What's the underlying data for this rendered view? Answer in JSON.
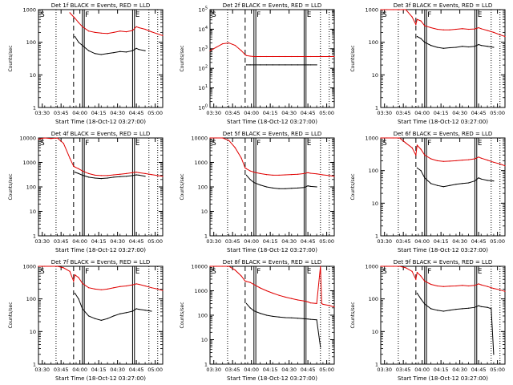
{
  "page": {
    "background": "#ffffff"
  },
  "colors": {
    "events": "#000000",
    "lld": "#e00000",
    "axis": "#000000"
  },
  "common": {
    "xlabel": "Start Time (18-Oct-12 03:27:00)",
    "ylabel": "Counts/sec",
    "x_ticks": [
      "03:30",
      "03:45",
      "04:00",
      "04:15",
      "04:30",
      "04:45",
      "05:00"
    ],
    "x_tick_minutes": [
      3,
      18,
      33,
      48,
      63,
      78,
      93
    ],
    "x_range_minutes": [
      0,
      99
    ],
    "y_ticks": [
      "1",
      "10",
      "100",
      "1000"
    ],
    "y_scale": "log",
    "legend_letters": [
      "S",
      "F",
      "E"
    ]
  },
  "markers": {
    "dotted_minutes": [
      14,
      88,
      95
    ],
    "dashed_minutes": [
      28
    ],
    "solid_minutes": [
      35,
      36.5,
      75,
      76.5
    ]
  },
  "chart_data": [
    {
      "type": "line",
      "title": "Det 1f BLACK = Events, RED = LLD",
      "ylim": [
        1,
        1000
      ],
      "ylabel": "Counts/sec",
      "xlabel": "Start Time (18-Oct-12 03:27:00)",
      "x": [
        0,
        5,
        10,
        15,
        20,
        25,
        28,
        29,
        32,
        35,
        40,
        45,
        50,
        55,
        60,
        65,
        70,
        75,
        78,
        80,
        85,
        90,
        95,
        99
      ],
      "series": [
        {
          "name": "LLD",
          "values": [
            null,
            null,
            null,
            null,
            null,
            800,
            600,
            550,
            400,
            300,
            220,
            200,
            190,
            185,
            200,
            220,
            210,
            230,
            300,
            280,
            250,
            210,
            180,
            160
          ]
        },
        {
          "name": "Events",
          "values": [
            null,
            null,
            null,
            null,
            null,
            null,
            null,
            150,
            100,
            80,
            55,
            45,
            42,
            45,
            48,
            52,
            50,
            55,
            65,
            60,
            55,
            null,
            null,
            null
          ]
        }
      ]
    },
    {
      "type": "line",
      "title": "Det 2f BLACK = Events, RED = LLD",
      "ylim": [
        1,
        100000
      ],
      "ylabel": "Counts/sec",
      "xlabel": "Start Time (18-Oct-12 03:27:00)",
      "x": [
        0,
        5,
        10,
        15,
        20,
        25,
        28,
        29,
        32,
        35,
        40,
        45,
        50,
        55,
        60,
        65,
        70,
        75,
        78,
        80,
        85,
        90,
        95,
        99
      ],
      "series": [
        {
          "name": "LLD",
          "values": [
            800,
            1200,
            1800,
            2000,
            1500,
            800,
            500,
            450,
            420,
            400,
            400,
            400,
            400,
            400,
            400,
            400,
            400,
            400,
            400,
            400,
            400,
            400,
            400,
            400
          ]
        },
        {
          "name": "Events",
          "values": [
            null,
            null,
            null,
            null,
            null,
            null,
            null,
            150,
            150,
            150,
            150,
            150,
            150,
            150,
            150,
            150,
            150,
            150,
            150,
            150,
            150,
            null,
            null,
            null
          ]
        }
      ]
    },
    {
      "type": "line",
      "title": "Det 3f BLACK = Events, RED = LLD",
      "ylim": [
        1,
        1000
      ],
      "ylabel": "Counts/sec",
      "xlabel": "Start Time (18-Oct-12 03:27:00)",
      "x": [
        0,
        5,
        10,
        15,
        20,
        25,
        28,
        29,
        32,
        35,
        40,
        45,
        50,
        55,
        60,
        65,
        70,
        75,
        78,
        80,
        85,
        90,
        95,
        99
      ],
      "series": [
        {
          "name": "LLD",
          "values": [
            1000,
            1000,
            1000,
            1000,
            1000,
            600,
            350,
            500,
            450,
            320,
            280,
            250,
            240,
            240,
            250,
            260,
            250,
            255,
            280,
            260,
            230,
            200,
            170,
            150
          ]
        },
        {
          "name": "Events",
          "values": [
            null,
            null,
            null,
            null,
            null,
            null,
            null,
            150,
            130,
            100,
            80,
            70,
            65,
            68,
            70,
            75,
            72,
            75,
            85,
            80,
            75,
            70,
            null,
            null
          ]
        }
      ]
    },
    {
      "type": "line",
      "title": "Det 4f BLACK = Events, RED = LLD",
      "ylim": [
        1,
        10000
      ],
      "ylabel": "Counts/sec",
      "xlabel": "Start Time (18-Oct-12 03:27:00)",
      "x": [
        0,
        5,
        10,
        15,
        20,
        25,
        28,
        29,
        32,
        35,
        40,
        45,
        50,
        55,
        60,
        65,
        70,
        75,
        78,
        80,
        85,
        90,
        95,
        99
      ],
      "series": [
        {
          "name": "LLD",
          "values": [
            9000,
            10000,
            9500,
            10000,
            6000,
            1500,
            700,
            650,
            550,
            450,
            350,
            300,
            290,
            290,
            310,
            330,
            350,
            380,
            400,
            380,
            350,
            320,
            290,
            270
          ]
        },
        {
          "name": "Events",
          "values": [
            null,
            null,
            null,
            null,
            null,
            null,
            null,
            400,
            350,
            300,
            250,
            230,
            220,
            230,
            250,
            260,
            270,
            290,
            310,
            300,
            270,
            null,
            null,
            null
          ]
        }
      ]
    },
    {
      "type": "line",
      "title": "Det 5f BLACK = Events, RED = LLD",
      "ylim": [
        1,
        10000
      ],
      "ylabel": "Counts/sec",
      "xlabel": "Start Time (18-Oct-12 03:27:00)",
      "x": [
        0,
        5,
        10,
        15,
        20,
        25,
        28,
        29,
        32,
        35,
        40,
        45,
        50,
        55,
        60,
        65,
        70,
        75,
        78,
        80,
        85,
        90,
        95,
        99
      ],
      "series": [
        {
          "name": "LLD",
          "values": [
            10000,
            10000,
            10000,
            8000,
            4000,
            1500,
            600,
            550,
            450,
            400,
            350,
            320,
            300,
            300,
            310,
            320,
            330,
            350,
            380,
            360,
            340,
            310,
            290,
            270
          ]
        },
        {
          "name": "Events",
          "values": [
            null,
            null,
            null,
            null,
            null,
            null,
            null,
            300,
            200,
            150,
            120,
            100,
            90,
            85,
            85,
            88,
            90,
            95,
            110,
            105,
            100,
            null,
            null,
            null
          ]
        }
      ]
    },
    {
      "type": "line",
      "title": "Det 6f BLACK = Events, RED = LLD",
      "ylim": [
        1,
        1000
      ],
      "ylabel": "Counts/sec",
      "xlabel": "Start Time (18-Oct-12 03:27:00)",
      "x": [
        0,
        5,
        10,
        15,
        20,
        25,
        28,
        29,
        32,
        35,
        40,
        45,
        50,
        55,
        60,
        65,
        70,
        75,
        78,
        80,
        85,
        90,
        95,
        99
      ],
      "series": [
        {
          "name": "LLD",
          "values": [
            1000,
            1000,
            1000,
            1000,
            700,
            500,
            300,
            600,
            450,
            300,
            230,
            200,
            190,
            195,
            200,
            210,
            215,
            230,
            260,
            240,
            210,
            180,
            160,
            140
          ]
        },
        {
          "name": "Events",
          "values": [
            null,
            null,
            null,
            null,
            null,
            null,
            null,
            120,
            100,
            60,
            40,
            35,
            32,
            35,
            38,
            40,
            42,
            48,
            60,
            55,
            50,
            48,
            null,
            null
          ]
        }
      ]
    },
    {
      "type": "line",
      "title": "Det 7f BLACK = Events, RED = LLD",
      "ylim": [
        1,
        1000
      ],
      "ylabel": "Counts/sec",
      "xlabel": "Start Time (18-Oct-12 03:27:00)",
      "x": [
        0,
        5,
        10,
        15,
        20,
        25,
        28,
        29,
        32,
        35,
        40,
        45,
        50,
        55,
        60,
        65,
        70,
        75,
        78,
        80,
        85,
        90,
        95,
        99
      ],
      "series": [
        {
          "name": "LLD",
          "values": [
            1000,
            1000,
            1000,
            1000,
            900,
            700,
            350,
            550,
            450,
            300,
            220,
            200,
            190,
            200,
            220,
            240,
            250,
            270,
            290,
            280,
            250,
            220,
            200,
            180
          ]
        },
        {
          "name": "Events",
          "values": [
            null,
            null,
            null,
            null,
            null,
            null,
            null,
            150,
            100,
            50,
            30,
            25,
            22,
            25,
            30,
            35,
            38,
            42,
            50,
            48,
            45,
            42,
            null,
            null
          ]
        }
      ]
    },
    {
      "type": "line",
      "title": "Det 8f BLACK = Events, RED = LLD",
      "ylim": [
        1,
        10000
      ],
      "ylabel": "Counts/sec",
      "xlabel": "Start Time (18-Oct-12 03:27:00)",
      "x": [
        0,
        5,
        10,
        15,
        20,
        25,
        28,
        29,
        32,
        35,
        40,
        45,
        50,
        55,
        60,
        65,
        70,
        75,
        78,
        80,
        85,
        88,
        89,
        90,
        95,
        99
      ],
      "series": [
        {
          "name": "LLD",
          "values": [
            10000,
            10000,
            10000,
            10000,
            7000,
            4000,
            2500,
            2400,
            2200,
            1800,
            1300,
            1000,
            800,
            650,
            550,
            480,
            420,
            380,
            350,
            320,
            300,
            10000,
            300,
            280,
            250,
            220
          ]
        },
        {
          "name": "Events",
          "values": [
            null,
            null,
            null,
            null,
            null,
            null,
            null,
            300,
            200,
            150,
            120,
            100,
            90,
            85,
            80,
            78,
            75,
            72,
            70,
            68,
            65,
            5,
            null,
            null,
            null,
            null
          ]
        }
      ]
    },
    {
      "type": "line",
      "title": "Det 9f BLACK = Events, RED = LLD",
      "ylim": [
        1,
        1000
      ],
      "ylabel": "Counts/sec",
      "xlabel": "Start Time (18-Oct-12 03:27:00)",
      "x": [
        0,
        5,
        10,
        15,
        20,
        25,
        28,
        29,
        32,
        35,
        40,
        45,
        50,
        55,
        60,
        65,
        70,
        75,
        78,
        80,
        85,
        88,
        90,
        95,
        99
      ],
      "series": [
        {
          "name": "LLD",
          "values": [
            1000,
            1000,
            1000,
            1000,
            900,
            700,
            400,
            650,
            500,
            350,
            280,
            250,
            240,
            245,
            250,
            260,
            250,
            260,
            290,
            270,
            240,
            220,
            210,
            190,
            170
          ]
        },
        {
          "name": "Events",
          "values": [
            null,
            null,
            null,
            null,
            null,
            null,
            null,
            150,
            100,
            70,
            50,
            45,
            42,
            45,
            48,
            50,
            52,
            55,
            62,
            58,
            55,
            50,
            2,
            null,
            null
          ]
        }
      ]
    }
  ]
}
